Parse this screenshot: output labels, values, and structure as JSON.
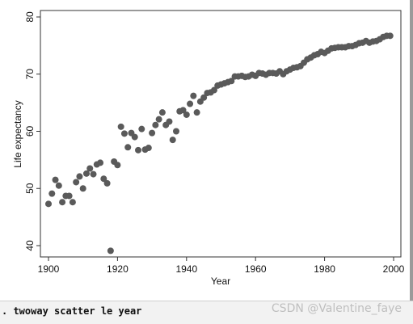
{
  "chart_data": {
    "type": "scatter",
    "title": "",
    "xlabel": "Year",
    "ylabel": "Life expectancy",
    "xlim": [
      1900,
      2000
    ],
    "ylim": [
      40,
      80
    ],
    "xticks": [
      1900,
      1920,
      1940,
      1960,
      1980,
      2000
    ],
    "yticks": [
      40,
      50,
      60,
      70,
      80
    ],
    "grid": false,
    "legend": "none",
    "marker_color": "#5a5a5a",
    "series": [
      {
        "x": [
          1900,
          1901,
          1902,
          1903,
          1904,
          1905,
          1906,
          1907,
          1908,
          1909,
          1910,
          1911,
          1912,
          1913,
          1914,
          1915,
          1916,
          1917,
          1918,
          1919,
          1920,
          1921,
          1922,
          1923,
          1924,
          1925,
          1926,
          1927,
          1928,
          1929,
          1930,
          1931,
          1932,
          1933,
          1934,
          1935,
          1936,
          1937,
          1938,
          1939,
          1940,
          1941,
          1942,
          1943,
          1944,
          1945,
          1946,
          1947,
          1948,
          1949,
          1950,
          1951,
          1952,
          1953,
          1954,
          1955,
          1956,
          1957,
          1958,
          1959,
          1960,
          1961,
          1962,
          1963,
          1964,
          1965,
          1966,
          1967,
          1968,
          1969,
          1970,
          1971,
          1972,
          1973,
          1974,
          1975,
          1976,
          1977,
          1978,
          1979,
          1980,
          1981,
          1982,
          1983,
          1984,
          1985,
          1986,
          1987,
          1988,
          1989,
          1990,
          1991,
          1992,
          1993,
          1994,
          1995,
          1996,
          1997,
          1998,
          1999
        ],
        "y": [
          47.3,
          49.1,
          51.5,
          50.5,
          47.6,
          48.7,
          48.7,
          47.6,
          51.1,
          52.1,
          50.0,
          52.6,
          53.5,
          52.5,
          54.2,
          54.5,
          51.7,
          50.9,
          39.1,
          54.7,
          54.1,
          60.8,
          59.6,
          57.2,
          59.7,
          59.0,
          56.7,
          60.4,
          56.8,
          57.1,
          59.7,
          61.1,
          62.1,
          63.3,
          61.1,
          61.7,
          58.5,
          60.0,
          63.5,
          63.7,
          62.9,
          64.8,
          66.2,
          63.3,
          65.2,
          65.9,
          66.7,
          66.8,
          67.2,
          68.0,
          68.2,
          68.4,
          68.6,
          68.8,
          69.6,
          69.6,
          69.7,
          69.5,
          69.6,
          69.9,
          69.7,
          70.2,
          70.1,
          69.9,
          70.2,
          70.2,
          70.1,
          70.5,
          70.0,
          70.5,
          70.8,
          71.1,
          71.2,
          71.4,
          72.0,
          72.6,
          72.9,
          73.3,
          73.5,
          73.9,
          73.7,
          74.1,
          74.5,
          74.6,
          74.7,
          74.7,
          74.7,
          74.9,
          74.9,
          75.1,
          75.4,
          75.5,
          75.8,
          75.5,
          75.7,
          75.8,
          76.1,
          76.5,
          76.7,
          76.7
        ]
      }
    ]
  },
  "console": {
    "command": ". twoway scatter le year",
    "watermark": "CSDN @Valentine_faye"
  }
}
